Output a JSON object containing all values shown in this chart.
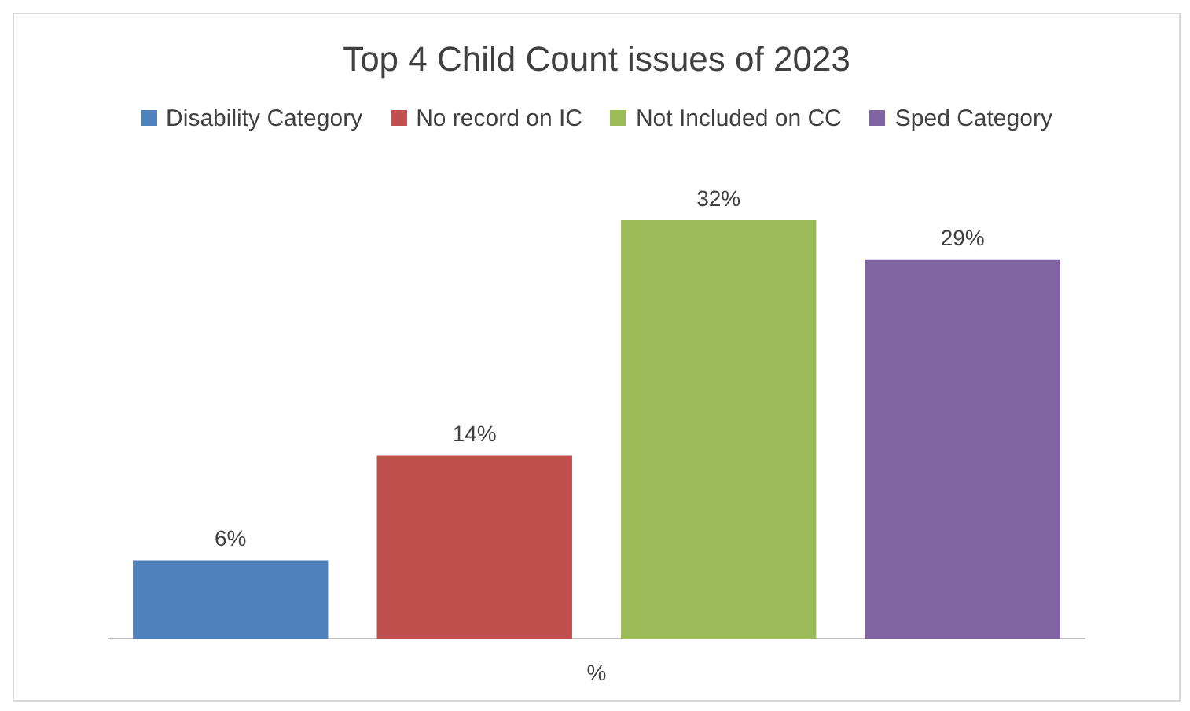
{
  "chart_data": {
    "type": "bar",
    "title": "Top 4 Child Count issues of 2023",
    "xlabel": "%",
    "categories": [
      "Disability Category",
      "No record on IC",
      "Not Included on CC",
      "Sped Category"
    ],
    "values": [
      6,
      14,
      32,
      29
    ],
    "colors": [
      "#4f81bd",
      "#c0504d",
      "#9bbb59",
      "#8064a2"
    ],
    "value_labels": [
      "6%",
      "14%",
      "32%",
      "29%"
    ],
    "tick_labels": false,
    "grid": false
  }
}
